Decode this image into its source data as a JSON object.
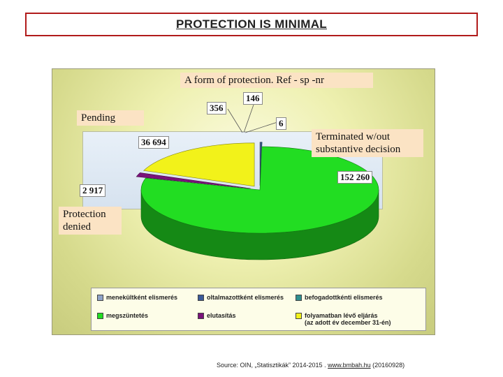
{
  "header": {
    "title": "PROTECTION IS MINIMAL"
  },
  "chart_data": {
    "type": "pie",
    "title": "",
    "slices": [
      {
        "legend": "menekültként elismerés",
        "value": 146,
        "color": "#8fa3c8"
      },
      {
        "legend": "oltalmazottként elismerés",
        "value": 356,
        "color": "#3a5a9a"
      },
      {
        "legend": "befogadottkénti elismerés",
        "value": 6,
        "color": "#2f8f8f"
      },
      {
        "legend": "megszüntetés",
        "value": 152260,
        "color": "#22dd22"
      },
      {
        "legend": "elutasítás",
        "value": 2917,
        "color": "#7a127a"
      },
      {
        "legend": "folyamatban lévő eljárás (az adott év december 31-én)",
        "value": 36694,
        "color": "#f2f21a"
      }
    ],
    "value_labels": [
      "146",
      "356",
      "6",
      "152 260",
      "2 917",
      "36 694"
    ],
    "annotations": {
      "protection_form": "A form of protection. Ref - sp -nr",
      "pending": "Pending",
      "terminated": "Terminated w/out substantive decision",
      "denied": "Protection denied"
    },
    "legend": {
      "position": "bottom",
      "items": [
        {
          "label": "menekültként elismerés",
          "color": "#8fa3c8"
        },
        {
          "label": "oltalmazottként elismerés",
          "color": "#3a5a9a"
        },
        {
          "label": "befogadottkénti elismerés",
          "color": "#2f8f8f"
        },
        {
          "label": "megszüntetés",
          "color": "#22dd22"
        },
        {
          "label": "elutasítás",
          "color": "#7a127a"
        },
        {
          "label": "folyamatban lévő eljárás",
          "label2": "(az adott év december 31-én)",
          "color": "#f2f21a"
        }
      ]
    }
  },
  "footer": {
    "source_prefix": "Source: OIN,  „Statisztikák” 2014-2015 . ",
    "source_link": "www.bmbah.hu",
    "source_suffix": " (20160928)"
  }
}
